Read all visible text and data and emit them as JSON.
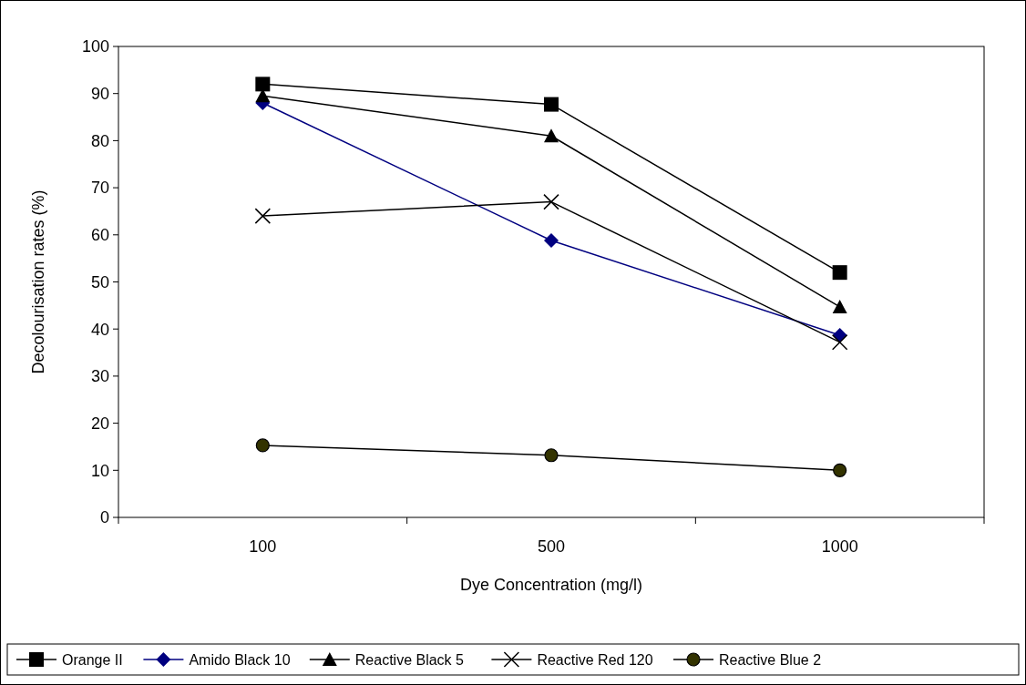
{
  "chart_data": {
    "type": "line",
    "xlabel": "Dye Concentration (mg/l)",
    "ylabel": "Decolourisation rates (%)",
    "categories": [
      "100",
      "500",
      "1000"
    ],
    "series": [
      {
        "name": "Orange II",
        "color": "#000000",
        "marker": "square",
        "values": [
          92,
          87.7,
          52
        ]
      },
      {
        "name": "Amido Black 10",
        "color": "#000080",
        "marker": "diamond",
        "values": [
          88,
          58.8,
          38.7
        ]
      },
      {
        "name": "Reactive Black 5",
        "color": "#000000",
        "marker": "triangle",
        "values": [
          89.5,
          81,
          44.7
        ]
      },
      {
        "name": "Reactive Red 120",
        "color": "#000000",
        "marker": "cross",
        "values": [
          64,
          67,
          37.2
        ]
      },
      {
        "name": "Reactive Blue 2",
        "color": "#000000",
        "marker": "circle",
        "values": [
          15.3,
          13.2,
          10
        ]
      }
    ],
    "ylim": [
      0,
      100
    ],
    "yticks": [
      0,
      10,
      20,
      30,
      40,
      50,
      60,
      70,
      80,
      90,
      100
    ],
    "grid": false,
    "legend": "bottom"
  }
}
